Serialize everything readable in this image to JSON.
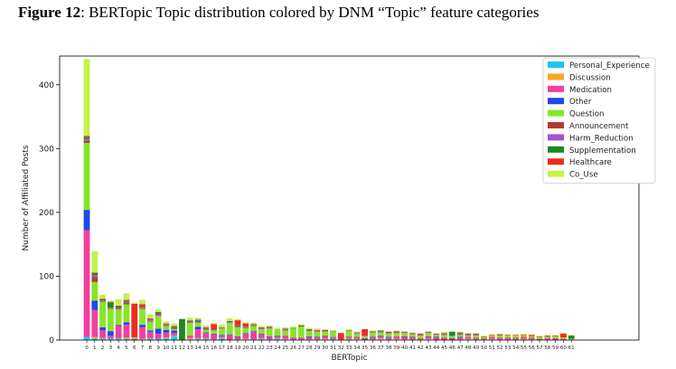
{
  "caption": {
    "figure_label": "Figure 12",
    "title": ": BERTopic Topic distribution colored by DNM “Topic” feature categories"
  },
  "chart_data": {
    "type": "bar",
    "stacked": true,
    "xlabel": "BERTopic",
    "ylabel": "Number of Affiliated Posts",
    "ylim": [
      0,
      445
    ],
    "yticks": [
      0,
      100,
      200,
      300,
      400
    ],
    "grid": false,
    "legend_position": "top-right",
    "categories": [
      "0",
      "1",
      "2",
      "3",
      "4",
      "5",
      "6",
      "7",
      "8",
      "9",
      "10",
      "11",
      "12",
      "13",
      "14",
      "15",
      "16",
      "17",
      "18",
      "19",
      "20",
      "21",
      "22",
      "23",
      "24",
      "25",
      "26",
      "27",
      "28",
      "29",
      "30",
      "31",
      "32",
      "33",
      "34",
      "35",
      "36",
      "37",
      "38",
      "39",
      "40",
      "41",
      "42",
      "43",
      "44",
      "45",
      "46",
      "47",
      "48",
      "49",
      "50",
      "51",
      "52",
      "53",
      "54",
      "55",
      "56",
      "57",
      "58",
      "59",
      "60",
      "61"
    ],
    "series": [
      {
        "name": "Personal_Experience",
        "color": "#22c5ee",
        "values": [
          5,
          3,
          2,
          3,
          2,
          2,
          0,
          1,
          2,
          2,
          3,
          6,
          0,
          1,
          2,
          2,
          1,
          3,
          0,
          1,
          1,
          1,
          2,
          1,
          2,
          1,
          1,
          1,
          1,
          0,
          1,
          2,
          0,
          2,
          1,
          0,
          0,
          1,
          1,
          1,
          0,
          0,
          0,
          1,
          0,
          0,
          0,
          0,
          1,
          0,
          0,
          0,
          0,
          0,
          0,
          0,
          0,
          0,
          0,
          0,
          0,
          0
        ]
      },
      {
        "name": "Discussion",
        "color": "#f5a623",
        "values": [
          0,
          2,
          1,
          0,
          1,
          2,
          0,
          1,
          1,
          0,
          1,
          1,
          0,
          2,
          1,
          1,
          0,
          1,
          0,
          0,
          1,
          0,
          1,
          0,
          1,
          1,
          0,
          0,
          0,
          1,
          1,
          0,
          0,
          1,
          1,
          0,
          1,
          2,
          0,
          1,
          1,
          1,
          1,
          1,
          0,
          0,
          0,
          1,
          1,
          1,
          1,
          2,
          1,
          1,
          1,
          2,
          1,
          0,
          1,
          0,
          0,
          0
        ]
      },
      {
        "name": "Medication",
        "color": "#f23f9f",
        "values": [
          167,
          42,
          12,
          4,
          20,
          20,
          2,
          18,
          10,
          8,
          8,
          4,
          0,
          4,
          14,
          8,
          8,
          3,
          8,
          4,
          8,
          12,
          6,
          4,
          3,
          5,
          3,
          3,
          4,
          3,
          4,
          3,
          1,
          3,
          3,
          2,
          3,
          3,
          3,
          4,
          4,
          3,
          2,
          3,
          4,
          4,
          2,
          3,
          3,
          3,
          2,
          3,
          3,
          3,
          3,
          3,
          3,
          2,
          2,
          3,
          2,
          1
        ]
      },
      {
        "name": "Other",
        "color": "#1e48ee",
        "values": [
          32,
          15,
          5,
          7,
          1,
          4,
          0,
          4,
          2,
          8,
          4,
          4,
          0,
          0,
          4,
          1,
          1,
          1,
          1,
          1,
          1,
          1,
          1,
          1,
          1,
          0,
          0,
          0,
          1,
          1,
          1,
          0,
          0,
          0,
          0,
          1,
          1,
          1,
          1,
          0,
          1,
          1,
          0,
          1,
          1,
          0,
          1,
          1,
          0,
          0,
          0,
          0,
          0,
          0,
          0,
          0,
          0,
          0,
          0,
          0,
          0,
          0
        ]
      },
      {
        "name": "Question",
        "color": "#86e626",
        "values": [
          105,
          29,
          40,
          35,
          24,
          28,
          2,
          25,
          14,
          20,
          6,
          2,
          0,
          20,
          6,
          4,
          5,
          10,
          18,
          14,
          8,
          8,
          7,
          12,
          10,
          8,
          14,
          17,
          8,
          8,
          6,
          8,
          0,
          8,
          5,
          3,
          7,
          5,
          5,
          5,
          5,
          4,
          4,
          5,
          3,
          4,
          3,
          3,
          2,
          3,
          2,
          2,
          3,
          3,
          3,
          2,
          2,
          3,
          2,
          3,
          2,
          1
        ]
      },
      {
        "name": "Announcement",
        "color": "#b03b33",
        "values": [
          3,
          8,
          1,
          1,
          1,
          2,
          0,
          1,
          1,
          1,
          1,
          1,
          0,
          1,
          1,
          1,
          0,
          0,
          0,
          1,
          1,
          0,
          0,
          0,
          0,
          1,
          0,
          0,
          0,
          1,
          0,
          0,
          0,
          1,
          0,
          0,
          0,
          0,
          0,
          1,
          0,
          0,
          1,
          0,
          0,
          1,
          0,
          1,
          0,
          0,
          0,
          0,
          0,
          0,
          0,
          0,
          1,
          0,
          0,
          0,
          0,
          0
        ]
      },
      {
        "name": "Harm_Reduction",
        "color": "#a84ed6",
        "values": [
          3,
          3,
          1,
          1,
          2,
          2,
          1,
          1,
          2,
          2,
          1,
          1,
          0,
          1,
          1,
          1,
          1,
          1,
          1,
          1,
          1,
          1,
          1,
          1,
          0,
          1,
          0,
          0,
          1,
          1,
          1,
          1,
          0,
          0,
          1,
          1,
          1,
          1,
          1,
          1,
          1,
          1,
          1,
          1,
          1,
          1,
          1,
          1,
          1,
          1,
          0,
          0,
          1,
          0,
          0,
          0,
          0,
          0,
          1,
          0,
          0,
          0
        ]
      },
      {
        "name": "Supplementation",
        "color": "#1b8a22",
        "values": [
          3,
          3,
          2,
          8,
          2,
          2,
          0,
          1,
          1,
          2,
          1,
          2,
          33,
          1,
          2,
          1,
          1,
          0,
          1,
          1,
          1,
          1,
          1,
          1,
          0,
          0,
          1,
          1,
          1,
          0,
          1,
          0,
          0,
          0,
          0,
          0,
          0,
          1,
          1,
          0,
          0,
          0,
          0,
          0,
          0,
          0,
          6,
          1,
          1,
          1,
          0,
          0,
          0,
          0,
          0,
          0,
          0,
          0,
          0,
          0,
          0,
          5
        ]
      },
      {
        "name": "Healthcare",
        "color": "#ee2c1e",
        "values": [
          2,
          1,
          1,
          1,
          1,
          1,
          52,
          4,
          1,
          1,
          1,
          1,
          0,
          1,
          1,
          1,
          8,
          1,
          1,
          8,
          4,
          1,
          1,
          1,
          0,
          1,
          0,
          1,
          1,
          1,
          1,
          0,
          10,
          0,
          1,
          10,
          1,
          1,
          1,
          1,
          1,
          1,
          1,
          1,
          1,
          1,
          0,
          1,
          1,
          1,
          1,
          1,
          1,
          1,
          1,
          1,
          1,
          1,
          1,
          1,
          6,
          0
        ]
      },
      {
        "name": "Co_Use",
        "color": "#c3f24a",
        "values": [
          120,
          33,
          6,
          2,
          10,
          10,
          2,
          7,
          6,
          4,
          3,
          4,
          0,
          4,
          3,
          3,
          2,
          4,
          4,
          2,
          2,
          2,
          2,
          2,
          2,
          2,
          2,
          2,
          2,
          2,
          1,
          2,
          0,
          2,
          1,
          0,
          1,
          1,
          1,
          1,
          1,
          1,
          1,
          1,
          1,
          2,
          1,
          1,
          1,
          1,
          1,
          1,
          1,
          1,
          1,
          2,
          1,
          1,
          1,
          1,
          1,
          1
        ]
      }
    ]
  }
}
